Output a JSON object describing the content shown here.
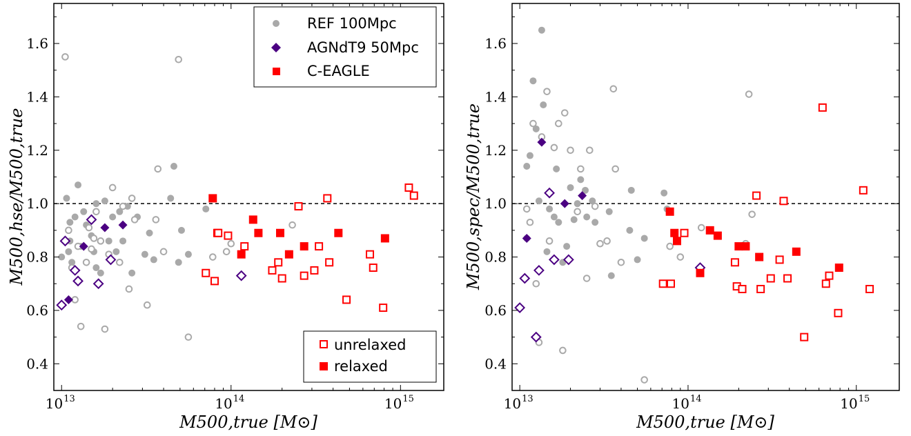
{
  "colors": {
    "ref": "#a9a9a9",
    "agn": "#4b0082",
    "ceagle": "#ff0000"
  },
  "chart_data": [
    {
      "type": "scatter",
      "xscale": "log",
      "xlim": [
        9000000000000.0,
        1800000000000000.0
      ],
      "ylim": [
        0.3,
        1.75
      ],
      "xlabel": "M500,true [M⊙]",
      "ylabel": "M500,hse/M500,true",
      "xticks": [
        {
          "base": "10",
          "exp": "13"
        },
        {
          "base": "10",
          "exp": "14"
        },
        {
          "base": "10",
          "exp": "15"
        }
      ],
      "yticks": [
        "0.4",
        "0.6",
        "0.8",
        "1.0",
        "1.2",
        "1.4",
        "1.6"
      ],
      "reference_line": 1.0,
      "legend_top": [
        "REF 100Mpc",
        "AGNdT9 50Mpc",
        "C-EAGLE"
      ],
      "legend_bottom": [
        "unrelaxed",
        "relaxed"
      ],
      "series": [
        {
          "name": "REF 100Mpc",
          "relaxed": true,
          "points": [
            [
              10000000000000.0,
              0.8
            ],
            [
              10700000000000.0,
              1.02
            ],
            [
              11000000000000.0,
              0.82
            ],
            [
              11200000000000.0,
              0.93
            ],
            [
              11500000000000.0,
              0.78
            ],
            [
              12000000000000.0,
              0.95
            ],
            [
              12500000000000.0,
              1.07
            ],
            [
              13000000000000.0,
              0.84
            ],
            [
              13500000000000.0,
              0.97
            ],
            [
              14000000000000.0,
              0.92
            ],
            [
              15000000000000.0,
              0.88
            ],
            [
              15500000000000.0,
              0.82
            ],
            [
              16000000000000.0,
              0.76
            ],
            [
              17000000000000.0,
              0.74
            ],
            [
              18000000000000.0,
              1.01
            ],
            [
              19000000000000.0,
              0.86
            ],
            [
              20000000000000.0,
              0.95
            ],
            [
              21000000000000.0,
              0.82
            ],
            [
              22000000000000.0,
              0.97
            ],
            [
              23000000000000.0,
              0.86
            ],
            [
              24500000000000.0,
              0.99
            ],
            [
              26000000000000.0,
              0.74
            ],
            [
              28000000000000.0,
              0.95
            ],
            [
              31000000000000.0,
              0.81
            ],
            [
              33000000000000.0,
              0.89
            ],
            [
              35000000000000.0,
              0.79
            ],
            [
              44000000000000.0,
              1.02
            ],
            [
              46000000000000.0,
              1.14
            ],
            [
              49000000000000.0,
              0.78
            ],
            [
              51000000000000.0,
              0.9
            ],
            [
              56000000000000.0,
              0.81
            ],
            [
              71000000000000.0,
              0.98
            ],
            [
              11200000000000.0,
              0.86
            ],
            [
              16000000000000.0,
              1.0
            ]
          ]
        },
        {
          "name": "REF 100Mpc",
          "relaxed": false,
          "points": [
            [
              10500000000000.0,
              1.55
            ],
            [
              11000000000000.0,
              0.9
            ],
            [
              11500000000000.0,
              0.76
            ],
            [
              12000000000000.0,
              0.64
            ],
            [
              12500000000000.0,
              0.84
            ],
            [
              13000000000000.0,
              0.54
            ],
            [
              14000000000000.0,
              0.78
            ],
            [
              14500000000000.0,
              0.91
            ],
            [
              15000000000000.0,
              0.83
            ],
            [
              15500000000000.0,
              0.87
            ],
            [
              16000000000000.0,
              0.97
            ],
            [
              17000000000000.0,
              0.86
            ],
            [
              18000000000000.0,
              0.53
            ],
            [
              19000000000000.0,
              0.81
            ],
            [
              20000000000000.0,
              1.06
            ],
            [
              22000000000000.0,
              0.78
            ],
            [
              23000000000000.0,
              0.99
            ],
            [
              25000000000000.0,
              0.68
            ],
            [
              26000000000000.0,
              1.02
            ],
            [
              27000000000000.0,
              0.94
            ],
            [
              32000000000000.0,
              0.62
            ],
            [
              36000000000000.0,
              0.94
            ],
            [
              37000000000000.0,
              1.13
            ],
            [
              40000000000000.0,
              0.82
            ],
            [
              49000000000000.0,
              1.54
            ],
            [
              56000000000000.0,
              0.5
            ],
            [
              78000000000000.0,
              0.8
            ],
            [
              94000000000000.0,
              0.82
            ],
            [
              100000000000000.0,
              0.85
            ],
            [
              230000000000000.0,
              0.92
            ]
          ]
        },
        {
          "name": "AGNdT9 50Mpc",
          "relaxed": true,
          "points": [
            [
              11000000000000.0,
              0.64
            ],
            [
              13500000000000.0,
              0.84
            ],
            [
              18000000000000.0,
              0.91
            ],
            [
              23000000000000.0,
              0.92
            ]
          ]
        },
        {
          "name": "AGNdT9 50Mpc",
          "relaxed": false,
          "points": [
            [
              10000000000000.0,
              0.62
            ],
            [
              10500000000000.0,
              0.86
            ],
            [
              12000000000000.0,
              0.75
            ],
            [
              12500000000000.0,
              0.71
            ],
            [
              15000000000000.0,
              0.94
            ],
            [
              16500000000000.0,
              0.7
            ],
            [
              19500000000000.0,
              0.79
            ],
            [
              115000000000000.0,
              0.73
            ]
          ]
        },
        {
          "name": "C-EAGLE",
          "relaxed": true,
          "points": [
            [
              78000000000000.0,
              1.02
            ],
            [
              83000000000000.0,
              0.89
            ],
            [
              115000000000000.0,
              0.81
            ],
            [
              135000000000000.0,
              0.94
            ],
            [
              145000000000000.0,
              0.89
            ],
            [
              195000000000000.0,
              0.89
            ],
            [
              220000000000000.0,
              0.81
            ],
            [
              270000000000000.0,
              0.84
            ],
            [
              430000000000000.0,
              0.89
            ],
            [
              810000000000000.0,
              0.87
            ]
          ]
        },
        {
          "name": "C-EAGLE",
          "relaxed": false,
          "points": [
            [
              71000000000000.0,
              0.74
            ],
            [
              80000000000000.0,
              0.71
            ],
            [
              84000000000000.0,
              0.89
            ],
            [
              96000000000000.0,
              0.88
            ],
            [
              120000000000000.0,
              0.84
            ],
            [
              175000000000000.0,
              0.75
            ],
            [
              190000000000000.0,
              0.78
            ],
            [
              200000000000000.0,
              0.72
            ],
            [
              250000000000000.0,
              0.99
            ],
            [
              270000000000000.0,
              0.73
            ],
            [
              310000000000000.0,
              0.75
            ],
            [
              330000000000000.0,
              0.84
            ],
            [
              370000000000000.0,
              1.02
            ],
            [
              380000000000000.0,
              0.78
            ],
            [
              480000000000000.0,
              0.64
            ],
            [
              660000000000000.0,
              0.81
            ],
            [
              690000000000000.0,
              0.76
            ],
            [
              790000000000000.0,
              0.61
            ],
            [
              1120000000000000.0,
              1.06
            ],
            [
              1200000000000000.0,
              1.03
            ]
          ]
        }
      ]
    },
    {
      "type": "scatter",
      "xscale": "log",
      "xlim": [
        9000000000000.0,
        1800000000000000.0
      ],
      "ylim": [
        0.3,
        1.75
      ],
      "xlabel": "M500,true [M⊙]",
      "ylabel": "M500,spec/M500,true",
      "xticks": [
        {
          "base": "10",
          "exp": "13"
        },
        {
          "base": "10",
          "exp": "14"
        },
        {
          "base": "10",
          "exp": "15"
        }
      ],
      "yticks": [
        "0.4",
        "0.6",
        "0.8",
        "1.0",
        "1.2",
        "1.4",
        "1.6"
      ],
      "reference_line": 1.0,
      "series": [
        {
          "name": "REF 100Mpc",
          "relaxed": true,
          "points": [
            [
              11000000000000.0,
              1.14
            ],
            [
              11500000000000.0,
              1.18
            ],
            [
              12000000000000.0,
              1.46
            ],
            [
              12500000000000.0,
              1.28
            ],
            [
              13000000000000.0,
              1.01
            ],
            [
              13500000000000.0,
              1.65
            ],
            [
              13800000000000.0,
              1.37
            ],
            [
              14500000000000.0,
              0.82
            ],
            [
              15000000000000.0,
              0.98
            ],
            [
              16000000000000.0,
              0.95
            ],
            [
              16500000000000.0,
              1.13
            ],
            [
              17000000000000.0,
              0.93
            ],
            [
              18000000000000.0,
              0.78
            ],
            [
              19000000000000.0,
              0.84
            ],
            [
              20000000000000.0,
              1.06
            ],
            [
              21000000000000.0,
              0.94
            ],
            [
              22000000000000.0,
              1.0
            ],
            [
              23000000000000.0,
              1.09
            ],
            [
              24500000000000.0,
              1.05
            ],
            [
              25000000000000.0,
              0.95
            ],
            [
              27000000000000.0,
              1.01
            ],
            [
              28000000000000.0,
              0.93
            ],
            [
              34000000000000.0,
              0.97
            ],
            [
              35000000000000.0,
              0.73
            ],
            [
              45000000000000.0,
              0.9
            ],
            [
              46000000000000.0,
              1.05
            ],
            [
              50000000000000.0,
              0.79
            ],
            [
              55000000000000.0,
              0.87
            ],
            [
              72000000000000.0,
              1.04
            ],
            [
              75000000000000.0,
              0.98
            ],
            [
              11000000000000.0,
              0.87
            ],
            [
              16000000000000.0,
              0.79
            ]
          ]
        },
        {
          "name": "REF 100Mpc",
          "relaxed": false,
          "points": [
            [
              11000000000000.0,
              0.98
            ],
            [
              11500000000000.0,
              0.93
            ],
            [
              12000000000000.0,
              1.3
            ],
            [
              12500000000000.0,
              0.7
            ],
            [
              13000000000000.0,
              0.48
            ],
            [
              13500000000000.0,
              1.25
            ],
            [
              14500000000000.0,
              1.42
            ],
            [
              15000000000000.0,
              0.86
            ],
            [
              16000000000000.0,
              1.21
            ],
            [
              17000000000000.0,
              1.3
            ],
            [
              18000000000000.0,
              0.45
            ],
            [
              18500000000000.0,
              1.34
            ],
            [
              20000000000000.0,
              1.2
            ],
            [
              22000000000000.0,
              0.97
            ],
            [
              23000000000000.0,
              1.13
            ],
            [
              25000000000000.0,
              0.72
            ],
            [
              26000000000000.0,
              1.2
            ],
            [
              28000000000000.0,
              0.99
            ],
            [
              30000000000000.0,
              0.85
            ],
            [
              33000000000000.0,
              0.86
            ],
            [
              36000000000000.0,
              1.43
            ],
            [
              37000000000000.0,
              1.13
            ],
            [
              40000000000000.0,
              0.78
            ],
            [
              55000000000000.0,
              0.34
            ],
            [
              78000000000000.0,
              0.84
            ],
            [
              90000000000000.0,
              0.8
            ],
            [
              120000000000000.0,
              0.91
            ],
            [
              220000000000000.0,
              0.85
            ],
            [
              230000000000000.0,
              1.41
            ],
            [
              240000000000000.0,
              0.96
            ]
          ]
        },
        {
          "name": "AGNdT9 50Mpc",
          "relaxed": true,
          "points": [
            [
              11000000000000.0,
              0.87
            ],
            [
              13500000000000.0,
              1.23
            ],
            [
              18500000000000.0,
              1.0
            ],
            [
              23500000000000.0,
              1.03
            ]
          ]
        },
        {
          "name": "AGNdT9 50Mpc",
          "relaxed": false,
          "points": [
            [
              10000000000000.0,
              0.61
            ],
            [
              10700000000000.0,
              0.72
            ],
            [
              12500000000000.0,
              0.5
            ],
            [
              13000000000000.0,
              0.75
            ],
            [
              15000000000000.0,
              1.04
            ],
            [
              16000000000000.0,
              0.79
            ],
            [
              19500000000000.0,
              0.79
            ],
            [
              118000000000000.0,
              0.76
            ]
          ]
        },
        {
          "name": "C-EAGLE",
          "relaxed": true,
          "points": [
            [
              78000000000000.0,
              0.97
            ],
            [
              83000000000000.0,
              0.89
            ],
            [
              86000000000000.0,
              0.86
            ],
            [
              118000000000000.0,
              0.74
            ],
            [
              135000000000000.0,
              0.9
            ],
            [
              150000000000000.0,
              0.88
            ],
            [
              200000000000000.0,
              0.84
            ],
            [
              220000000000000.0,
              0.84
            ],
            [
              265000000000000.0,
              0.8
            ],
            [
              440000000000000.0,
              0.82
            ],
            [
              790000000000000.0,
              0.76
            ]
          ]
        },
        {
          "name": "C-EAGLE",
          "relaxed": false,
          "points": [
            [
              71000000000000.0,
              0.7
            ],
            [
              79000000000000.0,
              0.7
            ],
            [
              95000000000000.0,
              0.89
            ],
            [
              190000000000000.0,
              0.78
            ],
            [
              195000000000000.0,
              0.69
            ],
            [
              210000000000000.0,
              0.68
            ],
            [
              255000000000000.0,
              1.03
            ],
            [
              270000000000000.0,
              0.68
            ],
            [
              310000000000000.0,
              0.72
            ],
            [
              350000000000000.0,
              0.79
            ],
            [
              370000000000000.0,
              1.01
            ],
            [
              390000000000000.0,
              0.72
            ],
            [
              490000000000000.0,
              0.5
            ],
            [
              630000000000000.0,
              1.36
            ],
            [
              660000000000000.0,
              0.7
            ],
            [
              690000000000000.0,
              0.73
            ],
            [
              780000000000000.0,
              0.59
            ],
            [
              1100000000000000.0,
              1.05
            ],
            [
              1200000000000000.0,
              0.68
            ]
          ]
        }
      ]
    }
  ]
}
